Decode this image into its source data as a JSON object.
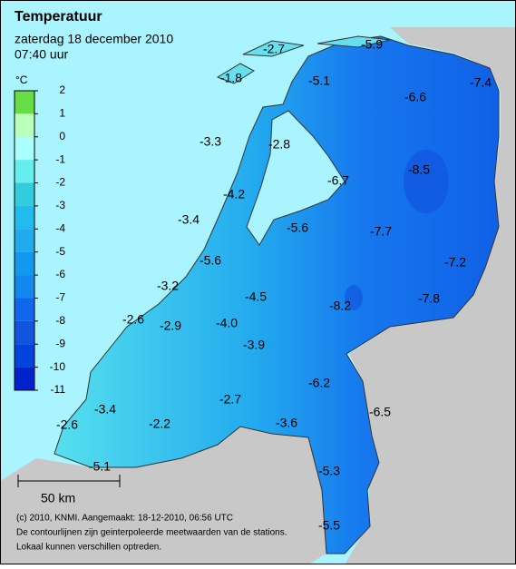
{
  "header": {
    "title": "Temperatuur",
    "date": "zaterdag 18 december 2010",
    "time": "07:40 uur"
  },
  "legend": {
    "unit": "°C",
    "ticks": [
      2,
      1,
      0,
      -1,
      -2,
      -3,
      -4,
      -5,
      -6,
      -7,
      -8,
      -9,
      -10,
      -11
    ],
    "colors": [
      "#66dd44",
      "#bbffbb",
      "#aaffff",
      "#66eeee",
      "#33ccdd",
      "#22bbee",
      "#22aaee",
      "#1199ee",
      "#1188ee",
      "#1166ee",
      "#1155dd",
      "#0044dd",
      "#0022cc"
    ]
  },
  "stations": [
    {
      "value": "-2.7"
    },
    {
      "value": "-5.9"
    },
    {
      "value": "-1.8"
    },
    {
      "value": "-5.1"
    },
    {
      "value": "-6.6"
    },
    {
      "value": "-7.4"
    },
    {
      "value": "-3.3"
    },
    {
      "value": "-2.8"
    },
    {
      "value": "-8.5"
    },
    {
      "value": "-6.7"
    },
    {
      "value": "-4.2"
    },
    {
      "value": "-3.4"
    },
    {
      "value": "-5.6"
    },
    {
      "value": "-7.7"
    },
    {
      "value": "-5.6"
    },
    {
      "value": "-7.2"
    },
    {
      "value": "-3.2"
    },
    {
      "value": "-4.5"
    },
    {
      "value": "-8.2"
    },
    {
      "value": "-7.8"
    },
    {
      "value": "-2.6"
    },
    {
      "value": "-2.9"
    },
    {
      "value": "-4.0"
    },
    {
      "value": "-3.9"
    },
    {
      "value": "-6.2"
    },
    {
      "value": "-2.7"
    },
    {
      "value": "-3.4"
    },
    {
      "value": "-6.5"
    },
    {
      "value": "-2.6"
    },
    {
      "value": "-2.2"
    },
    {
      "value": "-3.6"
    },
    {
      "value": "-5.1"
    },
    {
      "value": "-5.3"
    },
    {
      "value": "-5.5"
    }
  ],
  "scale": "50 km",
  "footer": [
    "(c) 2010, KNMI. Aangemaakt: 18-12-2010, 06:56 UTC",
    "De contourlijnen zijn geinterpoleerde meetwaarden van de stations.",
    "Lokaal kunnen verschillen optreden."
  ]
}
